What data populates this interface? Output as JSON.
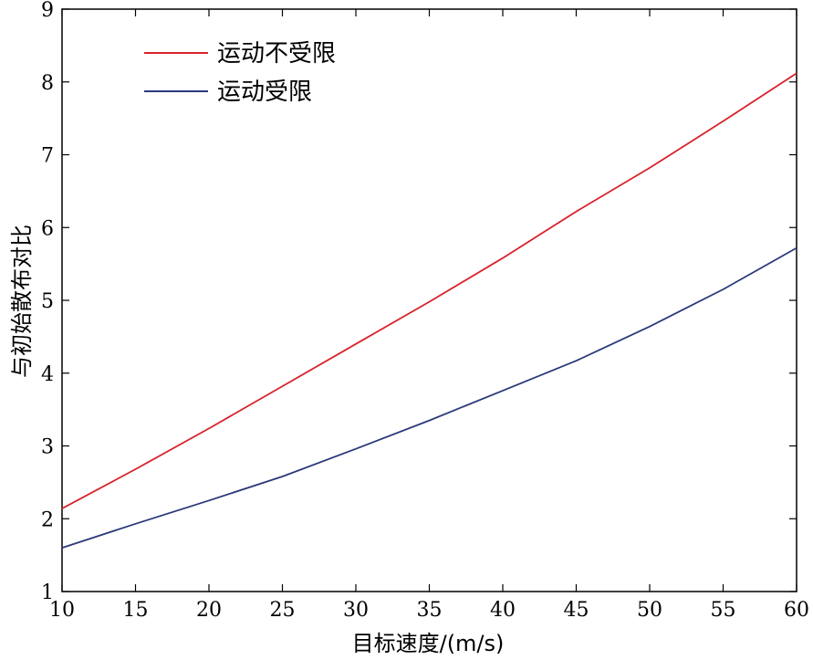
{
  "chart_data": {
    "type": "line",
    "xlabel": "目标速度/(m/s)",
    "ylabel": "与初始散布对比",
    "xlim": [
      10,
      60
    ],
    "ylim": [
      1,
      9
    ],
    "xticks": [
      10,
      15,
      20,
      25,
      30,
      35,
      40,
      45,
      50,
      55,
      60
    ],
    "yticks": [
      1,
      2,
      3,
      4,
      5,
      6,
      7,
      8,
      9
    ],
    "grid": false,
    "legend_position": "top-left",
    "x": [
      10,
      15,
      20,
      25,
      30,
      35,
      40,
      45,
      50,
      55,
      60
    ],
    "series": [
      {
        "name": "运动不受限",
        "color": "#d8222b",
        "values": [
          2.14,
          2.68,
          3.24,
          3.82,
          4.4,
          4.98,
          5.58,
          6.22,
          6.82,
          7.46,
          8.12
        ]
      },
      {
        "name": "运动受限",
        "color": "#2b3a7a",
        "values": [
          1.6,
          1.93,
          2.25,
          2.58,
          2.96,
          3.35,
          3.76,
          4.17,
          4.64,
          5.15,
          5.72
        ]
      }
    ]
  }
}
